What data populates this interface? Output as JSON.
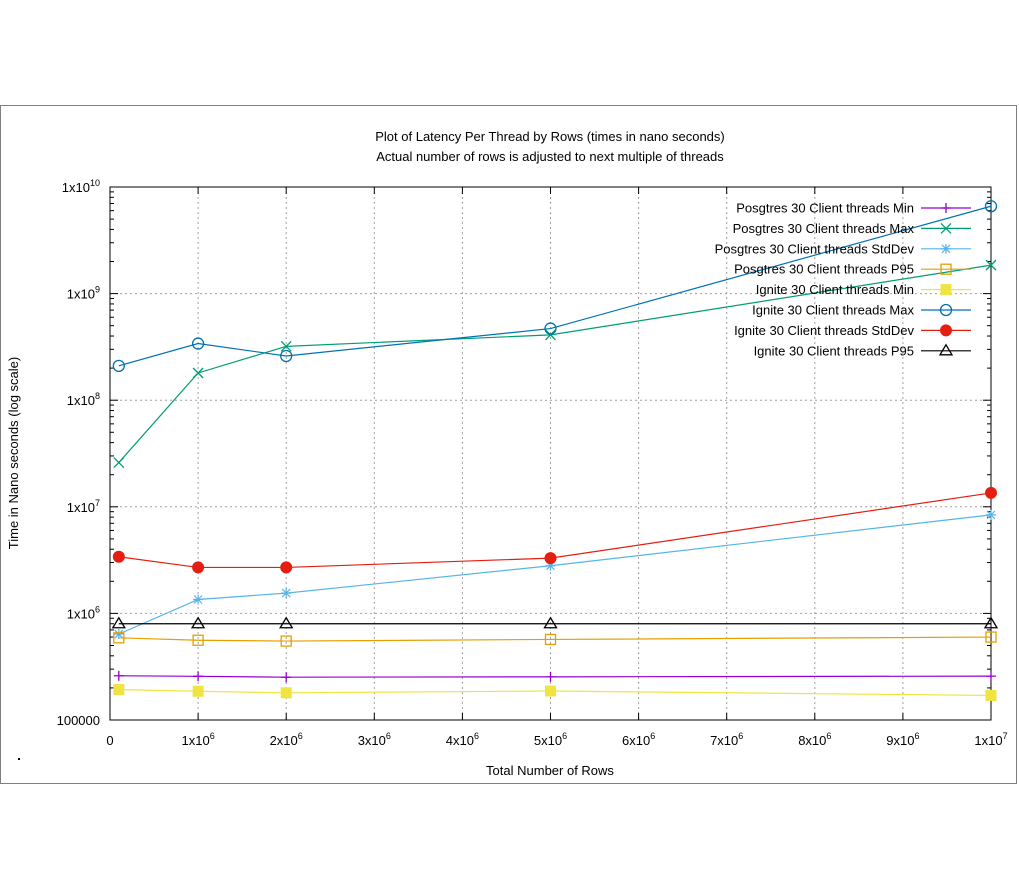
{
  "chart_data": {
    "type": "line",
    "title": "Plot of Latency Per Thread by Rows (times in nano seconds)",
    "subtitle": "Actual number of rows is adjusted to next multiple of threads",
    "xlabel": "Total Number of Rows",
    "ylabel": "Time in Nano seconds (log scale)",
    "xlim": [
      0,
      10000000
    ],
    "ylim": [
      100000,
      10000000000
    ],
    "y_scale": "log",
    "grid": true,
    "legend_position": "top-right",
    "x_ticks": [
      {
        "value": 0,
        "base": "0",
        "exp": ""
      },
      {
        "value": 1000000,
        "base": "1x10",
        "exp": "6"
      },
      {
        "value": 2000000,
        "base": "2x10",
        "exp": "6"
      },
      {
        "value": 3000000,
        "base": "3x10",
        "exp": "6"
      },
      {
        "value": 4000000,
        "base": "4x10",
        "exp": "6"
      },
      {
        "value": 5000000,
        "base": "5x10",
        "exp": "6"
      },
      {
        "value": 6000000,
        "base": "6x10",
        "exp": "6"
      },
      {
        "value": 7000000,
        "base": "7x10",
        "exp": "6"
      },
      {
        "value": 8000000,
        "base": "8x10",
        "exp": "6"
      },
      {
        "value": 9000000,
        "base": "9x10",
        "exp": "6"
      },
      {
        "value": 10000000,
        "base": "1x10",
        "exp": "7"
      }
    ],
    "y_ticks": [
      {
        "value": 100000,
        "base": "100000",
        "exp": ""
      },
      {
        "value": 1000000,
        "base": "1x10",
        "exp": "6"
      },
      {
        "value": 10000000,
        "base": "1x10",
        "exp": "7"
      },
      {
        "value": 100000000,
        "base": "1x10",
        "exp": "8"
      },
      {
        "value": 1000000000,
        "base": "1x10",
        "exp": "9"
      },
      {
        "value": 10000000000,
        "base": "1x10",
        "exp": "10"
      }
    ],
    "x": [
      100000,
      1000000,
      2000000,
      5000000,
      10000000
    ],
    "series": [
      {
        "name": "Posgtres 30 Client threads Min",
        "color": "#9400d3",
        "marker": "plus",
        "values": [
          260000,
          257000,
          252000,
          254000,
          258000
        ]
      },
      {
        "name": "Posgtres 30 Client threads Max",
        "color": "#009e73",
        "marker": "cross",
        "values": [
          26000000,
          180000000,
          320000000,
          410000000,
          1850000000
        ]
      },
      {
        "name": "Posgtres 30 Client threads StdDev",
        "color": "#56b4e9",
        "marker": "star",
        "values": [
          640000,
          1350000,
          1550000,
          2800000,
          8400000
        ]
      },
      {
        "name": "Posgtres 30 Client threads P95",
        "color": "#e69f00",
        "marker": "open-square",
        "values": [
          590000,
          560000,
          550000,
          570000,
          600000
        ]
      },
      {
        "name": "Ignite 30 Client threads Min",
        "color": "#f0e442",
        "marker": "filled-square",
        "values": [
          193000,
          186000,
          180000,
          187000,
          170000
        ]
      },
      {
        "name": "Ignite 30 Client threads Max",
        "color": "#0072b2",
        "marker": "open-circle",
        "values": [
          210000000,
          340000000,
          260000000,
          470000000,
          6600000000
        ]
      },
      {
        "name": "Ignite 30 Client threads StdDev",
        "color": "#e51e10",
        "marker": "filled-circle",
        "values": [
          3400000,
          2700000,
          2700000,
          3300000,
          13500000
        ]
      },
      {
        "name": "Ignite 30 Client threads P95",
        "color": "#000000",
        "marker": "open-triangle",
        "values": [
          800000,
          800000,
          800000,
          800000,
          800000
        ]
      }
    ]
  }
}
